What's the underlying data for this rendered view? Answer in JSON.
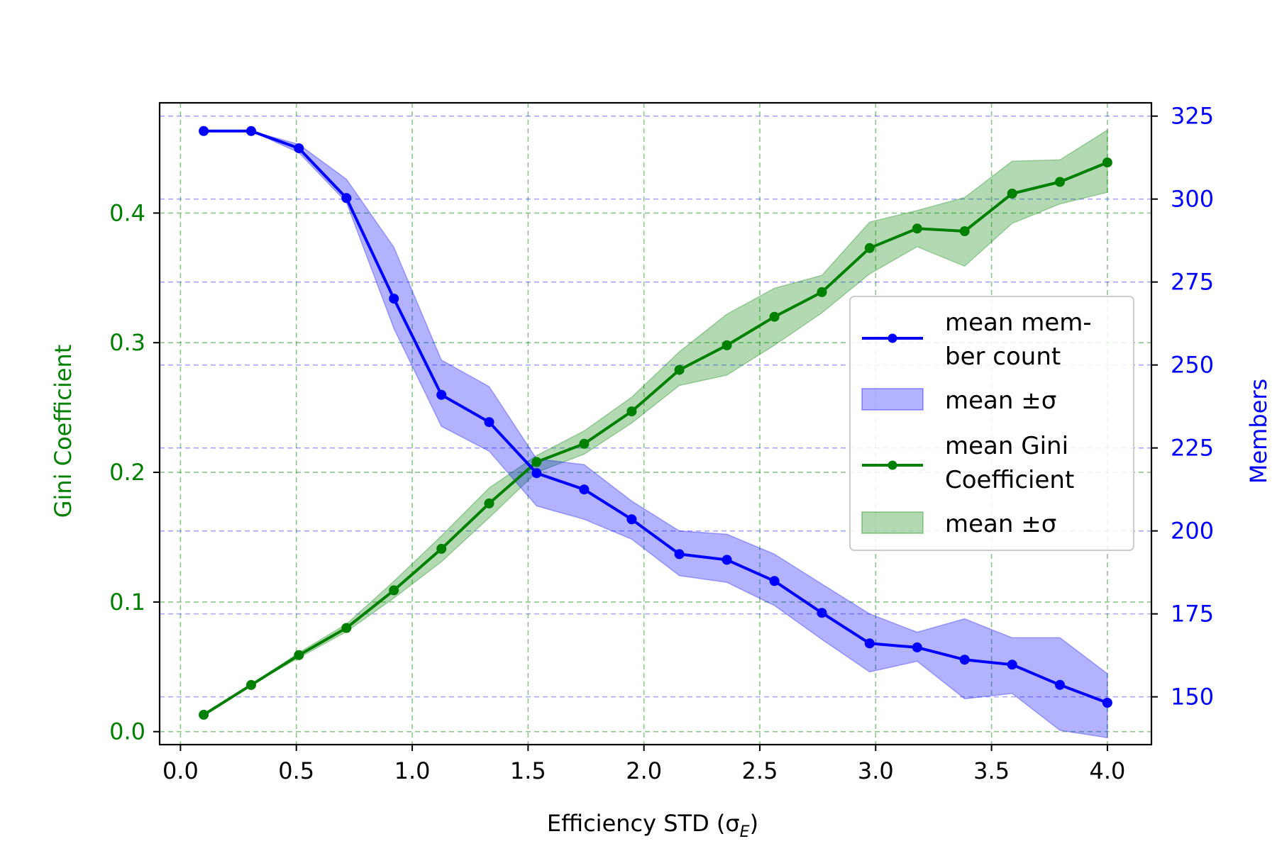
{
  "chart_data": {
    "type": "line",
    "xlabel": "Efficiency STD (σ",
    "xlabel_sub": "E",
    "xlabel_close": ")",
    "ylabel_left": "Gini Coefficient",
    "ylabel_right": "Members",
    "xlim": [
      -0.09,
      4.19
    ],
    "ylim_left": [
      -0.01,
      0.485
    ],
    "ylim_right": [
      135.6,
      329.0
    ],
    "x_ticks": [
      0.0,
      0.5,
      1.0,
      1.5,
      2.0,
      2.5,
      3.0,
      3.5,
      4.0
    ],
    "x_tick_labels": [
      "0.0",
      "0.5",
      "1.0",
      "1.5",
      "2.0",
      "2.5",
      "3.0",
      "3.5",
      "4.0"
    ],
    "y_left_ticks": [
      0.0,
      0.1,
      0.2,
      0.3,
      0.4
    ],
    "y_left_tick_labels": [
      "0.0",
      "0.1",
      "0.2",
      "0.3",
      "0.4"
    ],
    "y_right_ticks": [
      150,
      175,
      200,
      225,
      250,
      275,
      300,
      325
    ],
    "y_right_tick_labels": [
      "150",
      "175",
      "200",
      "225",
      "250",
      "275",
      "300",
      "325"
    ],
    "grid": true,
    "legend_position": "center-right",
    "x": [
      0.1,
      0.305,
      0.511,
      0.716,
      0.921,
      1.126,
      1.332,
      1.537,
      1.742,
      1.947,
      2.153,
      2.358,
      2.563,
      2.768,
      2.974,
      3.179,
      3.384,
      3.589,
      3.795,
      4.0
    ],
    "series": [
      {
        "name": "mean member count",
        "band_name": "mean ±σ",
        "axis": "right",
        "color": "#0000ff",
        "band_color": "#0000ff",
        "mean": [
          320.5,
          320.5,
          315.3,
          300.3,
          270.0,
          241.0,
          232.8,
          217.4,
          212.5,
          203.5,
          193.0,
          191.3,
          184.9,
          175.3,
          166.1,
          164.9,
          161.2,
          159.7,
          153.6,
          148.2
        ],
        "upper": [
          320.5,
          320.5,
          316.5,
          306.0,
          285.5,
          251.5,
          243.5,
          221.7,
          220.0,
          209.0,
          200.0,
          199.0,
          193.0,
          184.0,
          175.0,
          169.5,
          173.5,
          167.8,
          167.8,
          157.0
        ],
        "lower": [
          320.5,
          320.5,
          314.0,
          299.0,
          261.0,
          231.5,
          224.0,
          207.5,
          203.5,
          197.5,
          186.5,
          184.5,
          177.5,
          167.3,
          157.5,
          160.7,
          149.4,
          151.0,
          139.9,
          137.7
        ]
      },
      {
        "name": "mean Gini Coefficient",
        "band_name": "mean ±σ",
        "axis": "left",
        "color": "#008000",
        "band_color": "#008000",
        "mean": [
          0.013,
          0.036,
          0.059,
          0.08,
          0.109,
          0.141,
          0.176,
          0.208,
          0.222,
          0.247,
          0.279,
          0.298,
          0.32,
          0.339,
          0.373,
          0.388,
          0.386,
          0.415,
          0.424,
          0.439
        ],
        "upper": [
          0.013,
          0.036,
          0.061,
          0.083,
          0.116,
          0.151,
          0.188,
          0.213,
          0.232,
          0.258,
          0.293,
          0.322,
          0.342,
          0.352,
          0.393,
          0.402,
          0.412,
          0.44,
          0.441,
          0.464
        ],
        "lower": [
          0.013,
          0.036,
          0.057,
          0.077,
          0.103,
          0.131,
          0.165,
          0.2,
          0.214,
          0.238,
          0.267,
          0.275,
          0.298,
          0.323,
          0.353,
          0.374,
          0.359,
          0.392,
          0.407,
          0.416
        ]
      }
    ]
  },
  "legend": {
    "member_line_1": "mean mem-",
    "member_line_2": "ber count",
    "member_band": "mean ±σ",
    "gini_line_1": "mean Gini",
    "gini_line_2": "Coefficient",
    "gini_band": "mean ±σ"
  }
}
